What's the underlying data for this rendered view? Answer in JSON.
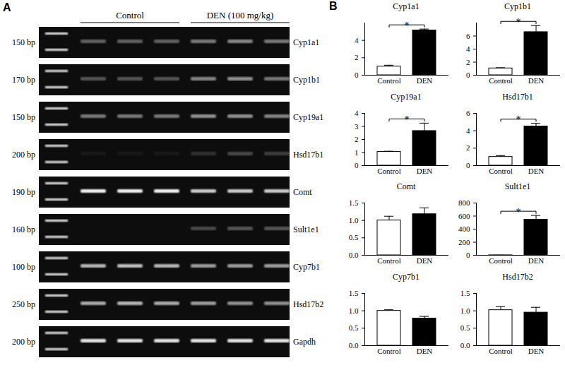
{
  "gel": {
    "panel_label": "A",
    "groups": [
      {
        "label": "Control",
        "lanes": 3
      },
      {
        "label": "DEN (100 mg/kg)",
        "lanes": 3
      }
    ],
    "rows": [
      {
        "size": "150 bp",
        "gene": "Cyp1a1",
        "bands": [
          0.35,
          0.35,
          0.35,
          0.45,
          0.5,
          0.45
        ]
      },
      {
        "size": "170 bp",
        "gene": "Cyp1b1",
        "bands": [
          0.3,
          0.3,
          0.3,
          0.5,
          0.55,
          0.45
        ]
      },
      {
        "size": "150 bp",
        "gene": "Cyp19a1",
        "bands": [
          0.45,
          0.45,
          0.45,
          0.55,
          0.55,
          0.5
        ]
      },
      {
        "size": "200 bp",
        "gene": "Hsd17b1",
        "bands": [
          0.05,
          0.05,
          0.05,
          0.15,
          0.25,
          0.2
        ]
      },
      {
        "size": "190 bp",
        "gene": "Comt",
        "bands": [
          0.95,
          0.95,
          0.95,
          0.8,
          0.8,
          0.8
        ]
      },
      {
        "size": "160 bp",
        "gene": "Sult1e1",
        "bands": [
          0,
          0,
          0,
          0.25,
          0.3,
          0.3
        ]
      },
      {
        "size": "100 bp",
        "gene": "Cyp7b1",
        "bands": [
          0.7,
          0.75,
          0.7,
          0.6,
          0.6,
          0.6
        ]
      },
      {
        "size": "250 bp",
        "gene": "Hsd17b2",
        "bands": [
          0.65,
          0.7,
          0.65,
          0.6,
          0.55,
          0.55
        ]
      },
      {
        "size": "200 bp",
        "gene": "Gapdh",
        "bands": [
          0.9,
          0.9,
          0.9,
          0.9,
          0.9,
          0.9
        ]
      }
    ]
  },
  "bar_panel": {
    "panel_label": "B"
  },
  "chart_data": [
    {
      "type": "bar",
      "title": "Cyp1a1",
      "categories": [
        "Control",
        "DEN"
      ],
      "values": [
        1.0,
        5.15
      ],
      "errors": [
        0.15,
        0.15
      ],
      "colors": [
        "#ffffff",
        "#000000"
      ],
      "ylim": [
        0,
        6
      ],
      "yticks": [
        0,
        2,
        4
      ],
      "annotations": [
        {
          "text": "*",
          "from": "Control",
          "to": "DEN"
        }
      ]
    },
    {
      "type": "bar",
      "title": "Cyp1b1",
      "categories": [
        "Control",
        "DEN"
      ],
      "values": [
        1.05,
        6.6
      ],
      "errors": [
        0.1,
        1.0
      ],
      "colors": [
        "#ffffff",
        "#000000"
      ],
      "ylim": [
        0,
        8
      ],
      "yticks": [
        0,
        2,
        4,
        6
      ],
      "annotations": [
        {
          "text": "*",
          "from": "Control",
          "to": "DEN"
        }
      ]
    },
    {
      "type": "bar",
      "title": "Cyp19a1",
      "categories": [
        "Control",
        "DEN"
      ],
      "values": [
        1.05,
        2.65
      ],
      "errors": [
        0.05,
        0.6
      ],
      "colors": [
        "#ffffff",
        "#000000"
      ],
      "ylim": [
        0,
        4
      ],
      "yticks": [
        0,
        1,
        2,
        3,
        4
      ],
      "annotations": [
        {
          "text": "*",
          "from": "Control",
          "to": "DEN"
        }
      ]
    },
    {
      "type": "bar",
      "title": "Hsd17b1",
      "categories": [
        "Control",
        "DEN"
      ],
      "values": [
        1.0,
        4.5
      ],
      "errors": [
        0.15,
        0.35
      ],
      "colors": [
        "#ffffff",
        "#000000"
      ],
      "ylim": [
        0,
        6
      ],
      "yticks": [
        0,
        2,
        4,
        6
      ],
      "annotations": [
        {
          "text": "*",
          "from": "Control",
          "to": "DEN"
        }
      ]
    },
    {
      "type": "bar",
      "title": "Comt",
      "categories": [
        "Control",
        "DEN"
      ],
      "values": [
        1.0,
        1.18
      ],
      "errors": [
        0.12,
        0.18
      ],
      "colors": [
        "#ffffff",
        "#000000"
      ],
      "ylim": [
        0,
        1.5
      ],
      "yticks": [
        {
          "value": 0,
          "label": "0.0"
        },
        {
          "value": 0.5,
          "label": "0.5"
        },
        {
          "value": 1,
          "label": "1.0"
        },
        {
          "value": 1.5,
          "label": "1.5"
        }
      ]
    },
    {
      "type": "bar",
      "title": "Sult1e1",
      "categories": [
        "Control",
        "DEN"
      ],
      "values": [
        1,
        545
      ],
      "errors": [
        0,
        65
      ],
      "colors": [
        "#ffffff",
        "#000000"
      ],
      "ylim": [
        0,
        800
      ],
      "yticks": [
        0,
        200,
        400,
        600,
        800
      ],
      "annotations": [
        {
          "text": "*",
          "from": "Control",
          "to": "DEN"
        }
      ]
    },
    {
      "type": "bar",
      "title": "Cyp7b1",
      "categories": [
        "Control",
        "DEN"
      ],
      "values": [
        1.0,
        0.78
      ],
      "errors": [
        0.03,
        0.06
      ],
      "colors": [
        "#ffffff",
        "#000000"
      ],
      "ylim": [
        0,
        1.5
      ],
      "yticks": [
        {
          "value": 0,
          "label": "0.0"
        },
        {
          "value": 0.5,
          "label": "0.5"
        },
        {
          "value": 1,
          "label": "1.0"
        },
        {
          "value": 1.5,
          "label": "1.5"
        }
      ]
    },
    {
      "type": "bar",
      "title": "Hsd17b2",
      "categories": [
        "Control",
        "DEN"
      ],
      "values": [
        1.02,
        0.95
      ],
      "errors": [
        0.1,
        0.15
      ],
      "colors": [
        "#ffffff",
        "#000000"
      ],
      "ylim": [
        0,
        1.5
      ],
      "yticks": [
        {
          "value": 0,
          "label": "0.0"
        },
        {
          "value": 0.5,
          "label": "0.5"
        },
        {
          "value": 1,
          "label": "1.0"
        },
        {
          "value": 1.5,
          "label": "1.5"
        }
      ]
    }
  ]
}
